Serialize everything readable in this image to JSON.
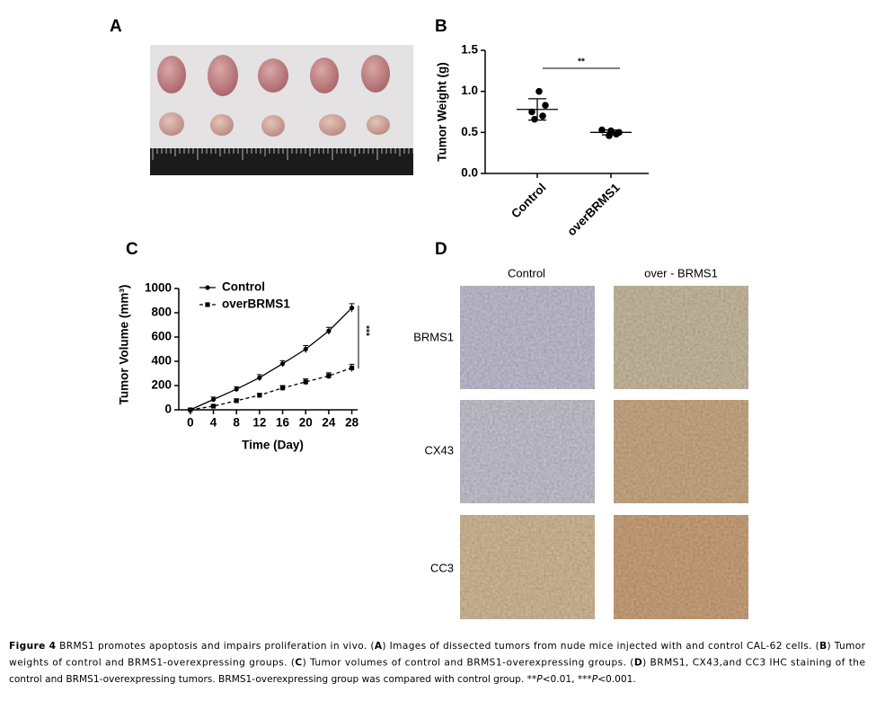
{
  "panels": [
    "A",
    "B",
    "C",
    "D"
  ],
  "chart_data": [
    {
      "type": "scatter",
      "ylabel": "Tumor Weight (g)",
      "categories": [
        "Control",
        "overBRMS1"
      ],
      "series": [
        {
          "values": [
            1.0,
            0.83,
            0.75,
            0.7,
            0.66
          ],
          "mean": 0.78,
          "sd": 0.13
        },
        {
          "values": [
            0.53,
            0.52,
            0.5,
            0.46,
            0.48
          ],
          "mean": 0.5,
          "sd": 0.03
        }
      ],
      "ylim": [
        0,
        1.5
      ],
      "yticks": [
        {
          "value": 0,
          "label": "0.0"
        },
        {
          "value": 0.5,
          "label": "0.5"
        },
        {
          "value": 1,
          "label": "1.0"
        },
        {
          "value": 1.5,
          "label": "1.5"
        }
      ],
      "annotation": "**",
      "color": "#000000"
    },
    {
      "type": "line",
      "xlabel": "Time (Day)",
      "ylabel": "Tumor Volume (mm³)",
      "x": [
        0,
        4,
        8,
        12,
        16,
        20,
        24,
        28
      ],
      "series": [
        {
          "name": "Control",
          "color": "#000000",
          "values": [
            0,
            85,
            170,
            265,
            380,
            500,
            650,
            840
          ],
          "errors": [
            8,
            20,
            20,
            25,
            25,
            30,
            30,
            35
          ]
        },
        {
          "name": "overBRMS1",
          "color": "#000000",
          "values": [
            0,
            30,
            75,
            120,
            180,
            230,
            280,
            345
          ],
          "errors": [
            5,
            10,
            15,
            15,
            20,
            25,
            25,
            30
          ]
        }
      ],
      "xlim": [
        -2,
        29
      ],
      "xticks": [
        0,
        4,
        8,
        12,
        16,
        20,
        24,
        28
      ],
      "ylim": [
        0,
        1000
      ],
      "yticks": [
        0,
        200,
        400,
        600,
        800,
        1000
      ],
      "annotation": "***"
    }
  ],
  "ihc": {
    "columns": [
      "Control",
      "over - BRMS1"
    ],
    "rows": [
      "BRMS1",
      "CX43",
      "CC3"
    ]
  },
  "caption": [
    [
      {
        "text": "Figure 4",
        "style": "bold"
      },
      {
        "text": " BRMS1 promotes apoptosis and impairs proliferation in vivo. ("
      },
      {
        "text": "A",
        "style": "bold"
      },
      {
        "text": ") Images of dissected tumors from nude mice injected with and control CAL-62 cells. ("
      },
      {
        "text": "B",
        "style": "bold"
      },
      {
        "text": ") Tumor"
      }
    ],
    [
      {
        "text": "weights of control and BRMS1-overexpressing groups. ("
      },
      {
        "text": "C",
        "style": "bold"
      },
      {
        "text": ") Tumor volumes of control and BRMS1-overexpressing groups. ("
      },
      {
        "text": "D",
        "style": "bold"
      },
      {
        "text": ") BRMS1, CX43,and CC3 IHC staining of the"
      }
    ],
    [
      {
        "text": "control and BRMS1-overexpressing tumors. BRMS1-overexpressing group was compared with control group. **"
      },
      {
        "text": "P",
        "style": "italic"
      },
      {
        "text": "<0.01, ***"
      },
      {
        "text": "P",
        "style": "italic"
      },
      {
        "text": "<0.001."
      }
    ]
  ]
}
